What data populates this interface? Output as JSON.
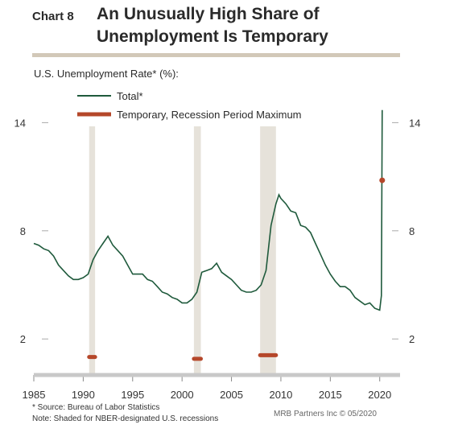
{
  "header": {
    "chart_number": "Chart 8",
    "title_line1": "An Unusually High Share of",
    "title_line2": "Unemployment Is Temporary"
  },
  "colors": {
    "total": "#1f5a3c",
    "temporary": "#b5472a",
    "recession": "#e6e2da",
    "rule": "#d2c8b8"
  },
  "chart_data": {
    "type": "line",
    "title": "An Unusually High Share of Unemployment Is Temporary",
    "ylabel": "U.S. Unemployment Rate* (%):",
    "xlim": [
      1985,
      2021
    ],
    "ylim": [
      0,
      15
    ],
    "x_ticks": [
      1985,
      1990,
      1995,
      2000,
      2005,
      2010,
      2015,
      2020
    ],
    "y_ticks": [
      2,
      8,
      14
    ],
    "legend_position": "top-center",
    "recessions": [
      [
        1990.6,
        1991.2
      ],
      [
        2001.2,
        2001.9
      ],
      [
        2007.9,
        2009.5
      ]
    ],
    "series": [
      {
        "name": "Total*",
        "points": [
          [
            1985.0,
            7.3
          ],
          [
            1985.5,
            7.2
          ],
          [
            1986.0,
            7.0
          ],
          [
            1986.5,
            6.9
          ],
          [
            1987.0,
            6.6
          ],
          [
            1987.5,
            6.1
          ],
          [
            1988.0,
            5.8
          ],
          [
            1988.5,
            5.5
          ],
          [
            1989.0,
            5.3
          ],
          [
            1989.5,
            5.3
          ],
          [
            1990.0,
            5.4
          ],
          [
            1990.5,
            5.6
          ],
          [
            1991.0,
            6.4
          ],
          [
            1991.5,
            6.9
          ],
          [
            1992.0,
            7.3
          ],
          [
            1992.5,
            7.7
          ],
          [
            1993.0,
            7.2
          ],
          [
            1993.5,
            6.9
          ],
          [
            1994.0,
            6.6
          ],
          [
            1994.5,
            6.1
          ],
          [
            1995.0,
            5.6
          ],
          [
            1995.5,
            5.6
          ],
          [
            1996.0,
            5.6
          ],
          [
            1996.5,
            5.3
          ],
          [
            1997.0,
            5.2
          ],
          [
            1997.5,
            4.9
          ],
          [
            1998.0,
            4.6
          ],
          [
            1998.5,
            4.5
          ],
          [
            1999.0,
            4.3
          ],
          [
            1999.5,
            4.2
          ],
          [
            2000.0,
            4.0
          ],
          [
            2000.5,
            4.0
          ],
          [
            2001.0,
            4.2
          ],
          [
            2001.5,
            4.6
          ],
          [
            2002.0,
            5.7
          ],
          [
            2002.5,
            5.8
          ],
          [
            2003.0,
            5.9
          ],
          [
            2003.5,
            6.2
          ],
          [
            2004.0,
            5.7
          ],
          [
            2004.5,
            5.5
          ],
          [
            2005.0,
            5.3
          ],
          [
            2005.5,
            5.0
          ],
          [
            2006.0,
            4.7
          ],
          [
            2006.5,
            4.6
          ],
          [
            2007.0,
            4.6
          ],
          [
            2007.5,
            4.7
          ],
          [
            2008.0,
            5.0
          ],
          [
            2008.5,
            5.8
          ],
          [
            2009.0,
            8.3
          ],
          [
            2009.5,
            9.5
          ],
          [
            2009.8,
            10.0
          ],
          [
            2010.0,
            9.8
          ],
          [
            2010.5,
            9.5
          ],
          [
            2011.0,
            9.1
          ],
          [
            2011.5,
            9.0
          ],
          [
            2012.0,
            8.3
          ],
          [
            2012.5,
            8.2
          ],
          [
            2013.0,
            7.9
          ],
          [
            2013.5,
            7.3
          ],
          [
            2014.0,
            6.7
          ],
          [
            2014.5,
            6.1
          ],
          [
            2015.0,
            5.6
          ],
          [
            2015.5,
            5.2
          ],
          [
            2016.0,
            4.9
          ],
          [
            2016.5,
            4.9
          ],
          [
            2017.0,
            4.7
          ],
          [
            2017.5,
            4.3
          ],
          [
            2018.0,
            4.1
          ],
          [
            2018.5,
            3.9
          ],
          [
            2019.0,
            4.0
          ],
          [
            2019.5,
            3.7
          ],
          [
            2020.0,
            3.6
          ],
          [
            2020.17,
            4.4
          ],
          [
            2020.25,
            14.7
          ]
        ]
      },
      {
        "name": "Temporary, Recession Period Maximum",
        "segments": [
          {
            "x": [
              1990.6,
              1991.2
            ],
            "y": 1.0
          },
          {
            "x": [
              2001.2,
              2001.9
            ],
            "y": 0.9
          },
          {
            "x": [
              2007.9,
              2009.5
            ],
            "y": 1.1
          }
        ],
        "latest": {
          "x": 2020.25,
          "y": 10.8
        }
      }
    ]
  },
  "footnotes": {
    "source": "* Source: Bureau of Labor Statistics",
    "note": "Note: Shaded for NBER-designated U.S. recessions",
    "credit": "MRB Partners Inc © 05/2020"
  }
}
